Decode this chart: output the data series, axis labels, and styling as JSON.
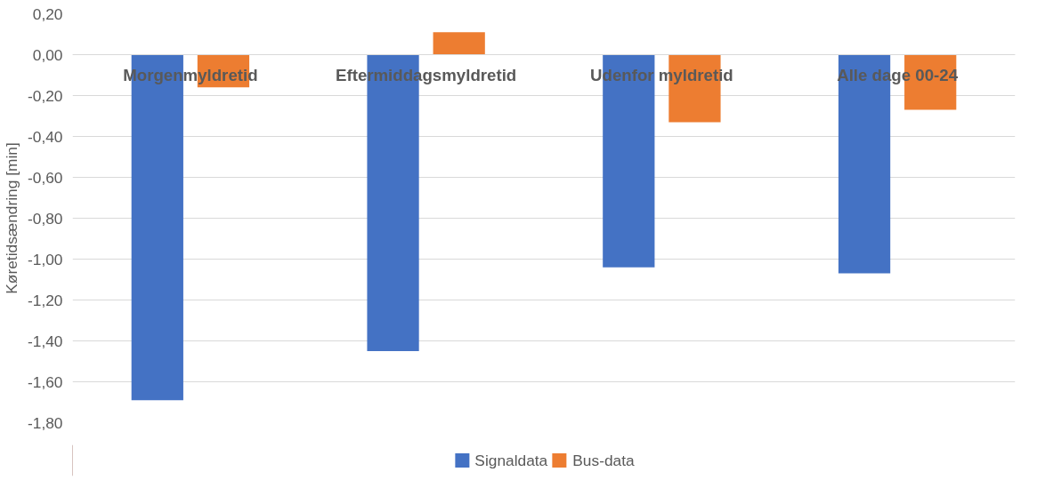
{
  "chart_data": {
    "type": "bar",
    "ylabel": "Køretidsændring [min]",
    "categories": [
      "Morgenmyldretid",
      "Eftermiddagsmyldretid",
      "Udenfor myldretid",
      "Alle dage 00-24"
    ],
    "series": [
      {
        "name": "Signaldata",
        "color": "#4472c4",
        "values": [
          -1.69,
          -1.45,
          -1.04,
          -1.07
        ]
      },
      {
        "name": "Bus-data",
        "color": "#ed7d31",
        "values": [
          -0.16,
          0.11,
          -0.33,
          -0.27
        ]
      }
    ],
    "ylim": [
      -1.8,
      0.2
    ],
    "yticks": [
      {
        "value": 0.2,
        "label": "0,20"
      },
      {
        "value": 0,
        "label": "0,00"
      },
      {
        "value": -0.2,
        "label": "-0,20"
      },
      {
        "value": -0.4,
        "label": "-0,40"
      },
      {
        "value": -0.6,
        "label": "-0,60"
      },
      {
        "value": -0.8,
        "label": "-0,80"
      },
      {
        "value": -1.0,
        "label": "-1,00"
      },
      {
        "value": -1.2,
        "label": "-1,20"
      },
      {
        "value": -1.4,
        "label": "-1,40"
      },
      {
        "value": -1.6,
        "label": "-1,60"
      },
      {
        "value": -1.8,
        "label": "-1,80"
      }
    ],
    "grid": "y",
    "legend": "bottom"
  }
}
